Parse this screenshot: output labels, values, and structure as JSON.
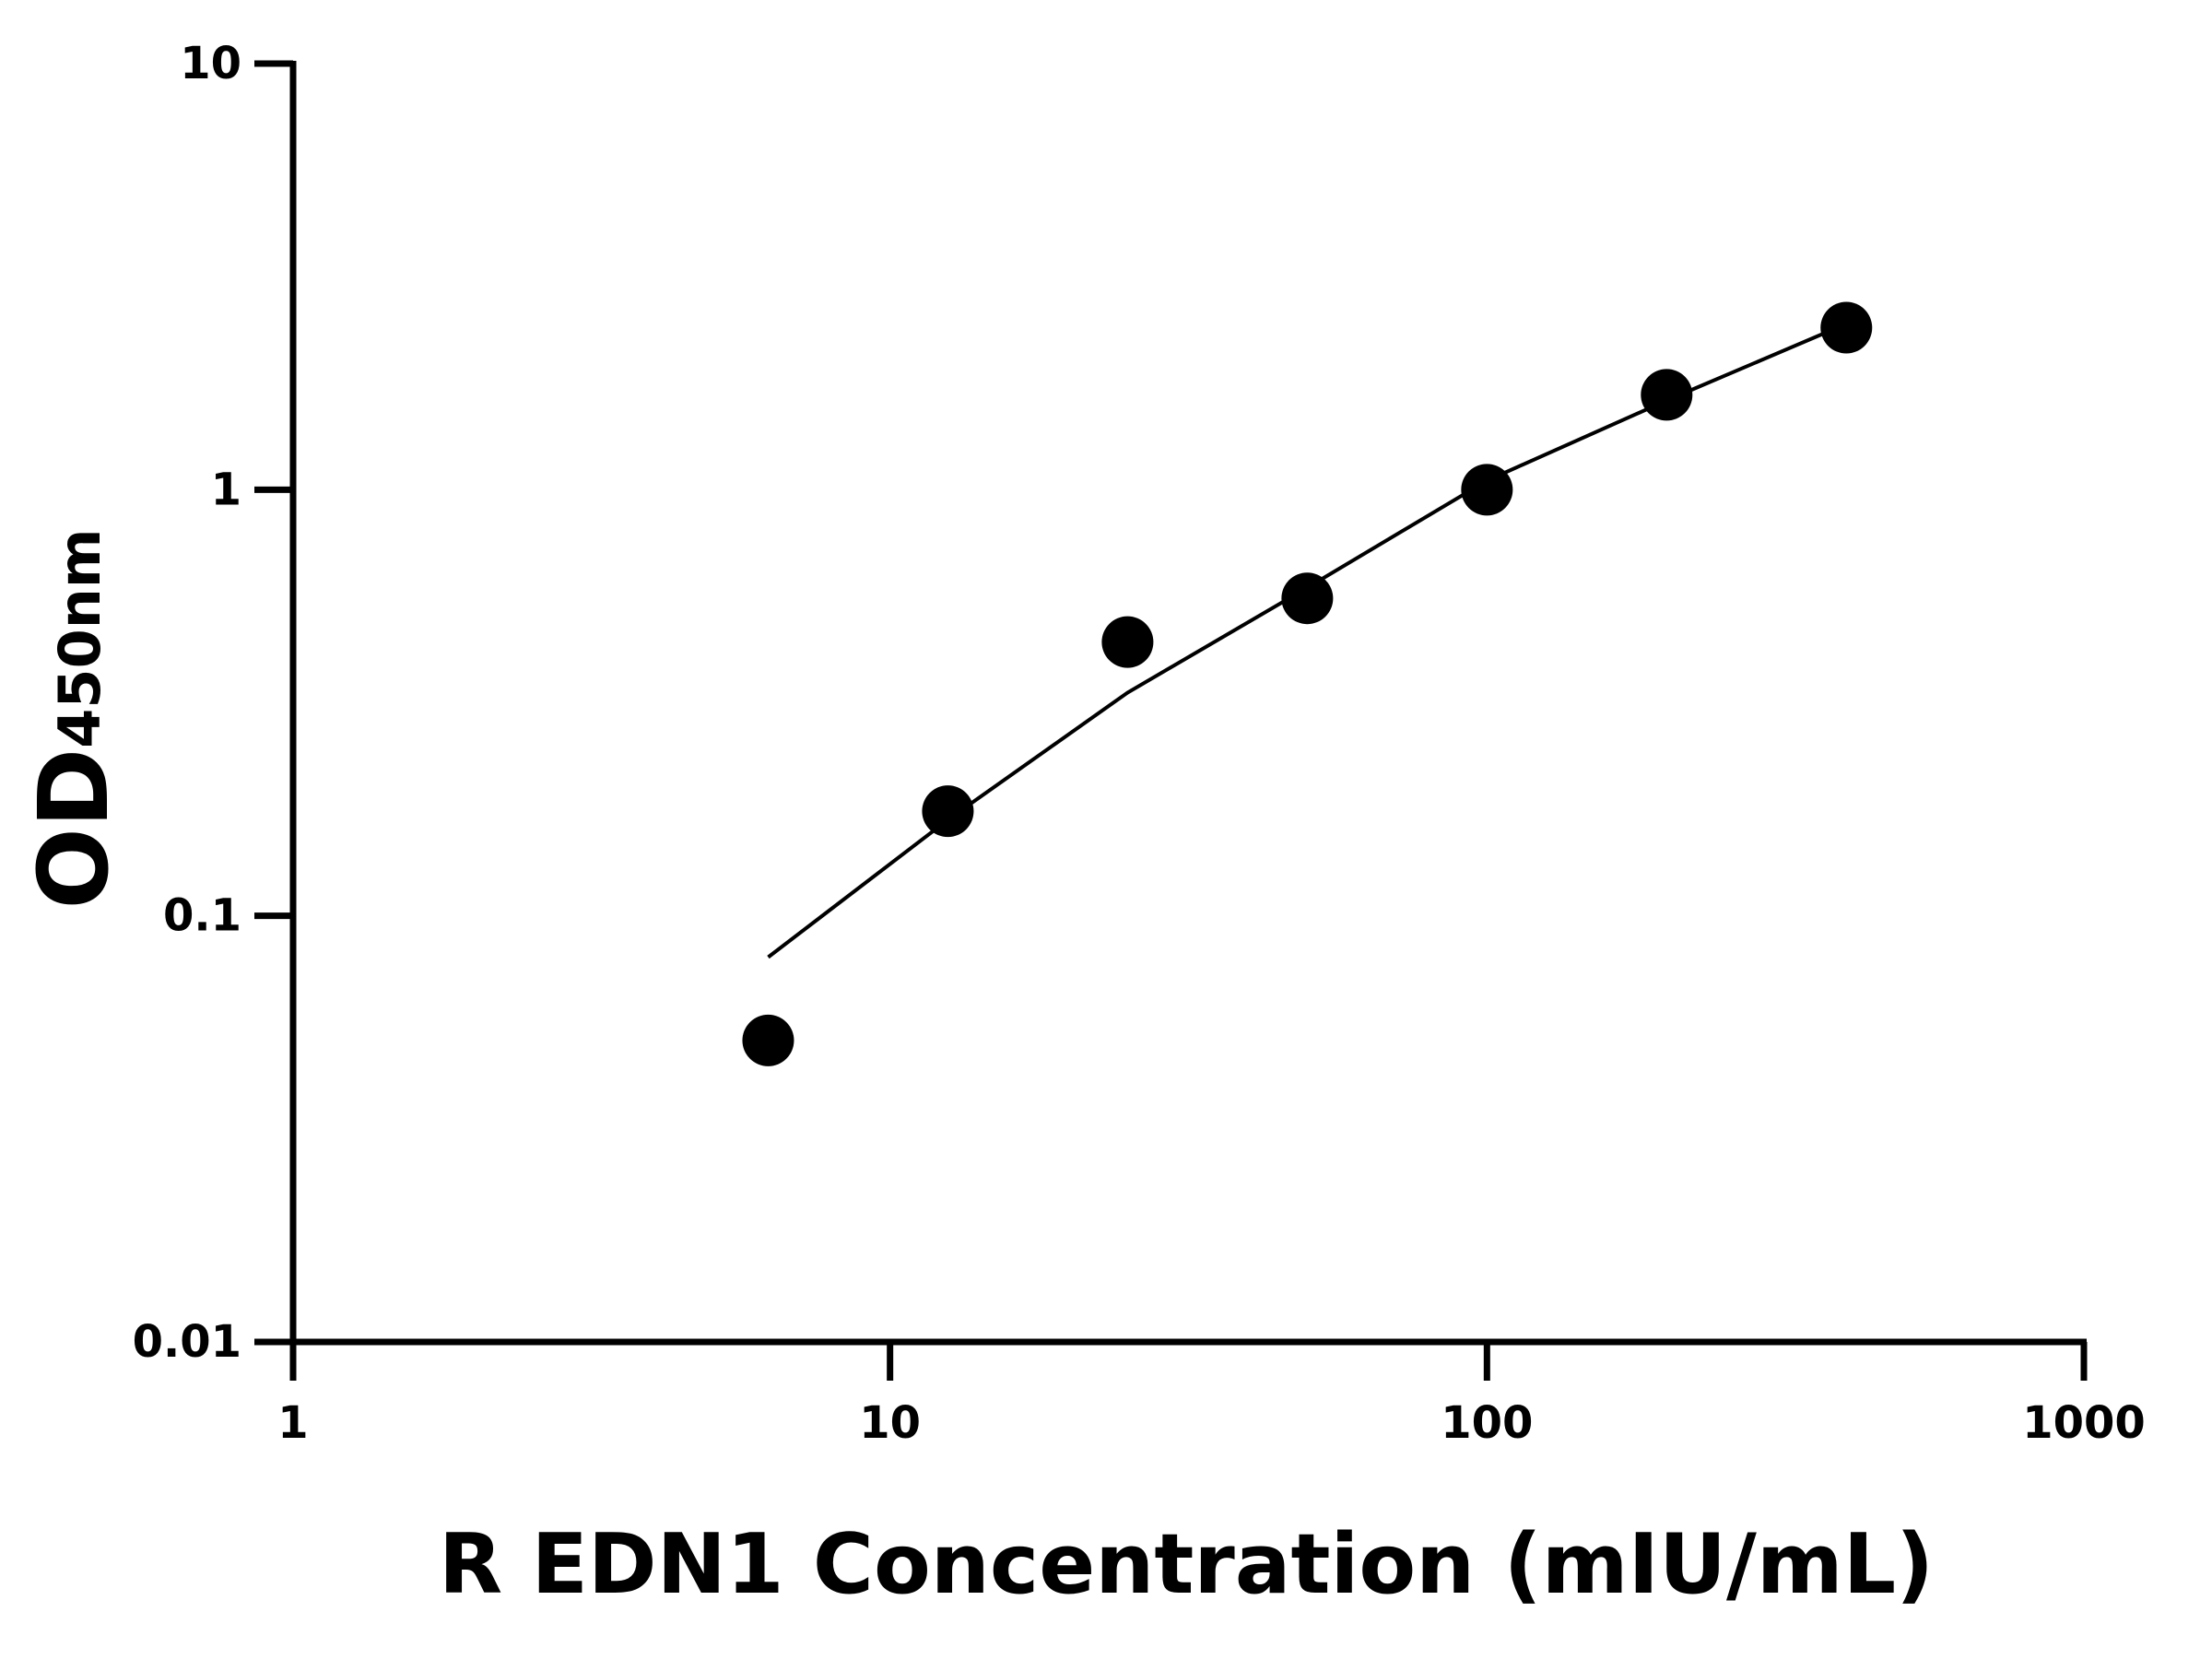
{
  "chart_data": {
    "type": "scatter",
    "xlabel": "R EDN1 Concentration (mIU/mL)",
    "ylabel": "OD",
    "ylabel_subscript": "450nm",
    "x": [
      6.25,
      12.5,
      25,
      50,
      100,
      200,
      400
    ],
    "values": [
      0.051,
      0.176,
      0.439,
      0.556,
      1.0,
      1.67,
      2.4
    ],
    "color": "#000000",
    "curve": {
      "x": [
        6.25,
        12.5,
        25,
        50,
        100,
        200,
        400
      ],
      "values": [
        0.08,
        0.168,
        0.334,
        0.589,
        1.05,
        1.62,
        2.45
      ],
      "color": "#000000"
    },
    "xscale": "log",
    "yscale": "log",
    "xlim": [
      1,
      1000
    ],
    "ylim": [
      0.01,
      10
    ],
    "xticks": [
      1,
      10,
      100,
      1000
    ],
    "yticks": [
      0.01,
      0.1,
      1,
      10
    ],
    "grid": false
  }
}
